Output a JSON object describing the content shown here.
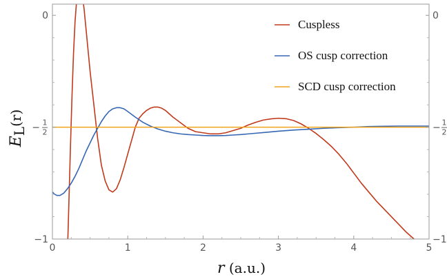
{
  "chart_data": {
    "type": "line",
    "xlabel": {
      "var": "r",
      "unit": " (a.u.)"
    },
    "ylabel": {
      "base": "E",
      "sub": "L",
      "arg": "(r)"
    },
    "xlim": [
      0,
      5
    ],
    "ylim": [
      -1,
      0.05
    ],
    "x_ticks": [
      {
        "value": 0,
        "label": "0"
      },
      {
        "value": 1,
        "label": "1"
      },
      {
        "value": 2,
        "label": "2"
      },
      {
        "value": 3,
        "label": "3"
      },
      {
        "value": 4,
        "label": "4"
      },
      {
        "value": 5,
        "label": "5"
      }
    ],
    "y_ticks": [
      {
        "value": 0,
        "label": "0"
      },
      {
        "value": -0.5,
        "label": "−",
        "num": "1",
        "den": "2"
      },
      {
        "value": -1,
        "label": "−1"
      }
    ],
    "legend_position": "top-right",
    "series": [
      {
        "name": "Cuspless",
        "color": "#c0391b",
        "x": [
          0.2,
          0.21,
          0.22,
          0.24,
          0.26,
          0.28,
          0.3,
          0.32,
          0.34,
          0.36,
          0.38,
          0.4,
          0.42,
          0.44,
          0.46,
          0.48,
          0.5,
          0.55,
          0.6,
          0.65,
          0.7,
          0.75,
          0.8,
          0.85,
          0.9,
          0.95,
          1.0,
          1.05,
          1.1,
          1.15,
          1.2,
          1.25,
          1.3,
          1.35,
          1.4,
          1.45,
          1.5,
          1.55,
          1.6,
          1.7,
          1.8,
          1.9,
          2.0,
          2.1,
          2.2,
          2.3,
          2.4,
          2.5,
          2.6,
          2.7,
          2.8,
          2.9,
          3.0,
          3.1,
          3.2,
          3.3,
          3.4,
          3.5,
          3.6,
          3.7,
          3.8,
          3.9,
          4.0,
          4.1,
          4.2,
          4.3,
          4.4,
          4.5,
          4.6,
          4.7,
          4.8,
          4.9,
          5.0
        ],
        "y": [
          -1.05,
          -0.94,
          -0.82,
          -0.58,
          -0.36,
          -0.17,
          -0.03,
          0.06,
          0.11,
          0.125,
          0.115,
          0.08,
          0.03,
          -0.04,
          -0.11,
          -0.18,
          -0.25,
          -0.4,
          -0.55,
          -0.67,
          -0.74,
          -0.78,
          -0.79,
          -0.775,
          -0.735,
          -0.68,
          -0.62,
          -0.56,
          -0.5,
          -0.46,
          -0.44,
          -0.425,
          -0.415,
          -0.41,
          -0.41,
          -0.415,
          -0.425,
          -0.44,
          -0.455,
          -0.48,
          -0.505,
          -0.52,
          -0.525,
          -0.53,
          -0.53,
          -0.525,
          -0.515,
          -0.505,
          -0.49,
          -0.478,
          -0.468,
          -0.463,
          -0.46,
          -0.462,
          -0.47,
          -0.485,
          -0.505,
          -0.528,
          -0.555,
          -0.585,
          -0.62,
          -0.66,
          -0.705,
          -0.75,
          -0.79,
          -0.83,
          -0.865,
          -0.9,
          -0.935,
          -0.97,
          -1.0,
          -1.03,
          -1.06
        ]
      },
      {
        "name": "OS cusp correction",
        "color": "#3566b4",
        "x": [
          0,
          0.03,
          0.06,
          0.1,
          0.15,
          0.2,
          0.25,
          0.3,
          0.35,
          0.4,
          0.45,
          0.5,
          0.55,
          0.6,
          0.65,
          0.7,
          0.75,
          0.8,
          0.85,
          0.9,
          0.95,
          1.0,
          1.1,
          1.2,
          1.3,
          1.4,
          1.5,
          1.6,
          1.7,
          1.8,
          1.9,
          2.0,
          2.1,
          2.2,
          2.3,
          2.4,
          2.5,
          2.6,
          2.7,
          2.8,
          2.9,
          3.0,
          3.2,
          3.4,
          3.6,
          3.8,
          4.0,
          4.2,
          4.4,
          4.6,
          4.8,
          5.0
        ],
        "y": [
          -0.79,
          -0.8,
          -0.805,
          -0.805,
          -0.795,
          -0.775,
          -0.75,
          -0.72,
          -0.685,
          -0.645,
          -0.605,
          -0.57,
          -0.535,
          -0.505,
          -0.475,
          -0.45,
          -0.43,
          -0.418,
          -0.413,
          -0.413,
          -0.418,
          -0.43,
          -0.455,
          -0.478,
          -0.495,
          -0.508,
          -0.518,
          -0.525,
          -0.53,
          -0.533,
          -0.535,
          -0.537,
          -0.538,
          -0.538,
          -0.537,
          -0.535,
          -0.533,
          -0.53,
          -0.527,
          -0.524,
          -0.521,
          -0.518,
          -0.513,
          -0.509,
          -0.505,
          -0.502,
          -0.5,
          -0.497,
          -0.496,
          -0.495,
          -0.495,
          -0.495
        ]
      },
      {
        "name": "SCD cusp correction",
        "color": "#f0a21a",
        "x": [
          0,
          5
        ],
        "y": [
          -0.5,
          -0.5
        ]
      }
    ]
  }
}
